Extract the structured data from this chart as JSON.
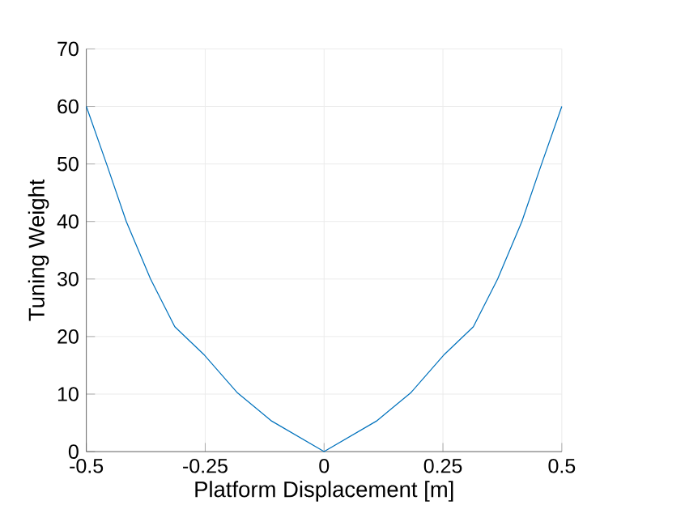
{
  "chart_data": {
    "type": "line",
    "xlabel": "Platform Displacement [m]",
    "ylabel": "Tuning Weight",
    "xlim": [
      -0.5,
      0.5
    ],
    "ylim": [
      0,
      70
    ],
    "xticks": [
      -0.5,
      -0.25,
      0,
      0.25,
      0.5
    ],
    "yticks": [
      0,
      10,
      20,
      30,
      40,
      50,
      60,
      70
    ],
    "grid": true,
    "series": [
      {
        "color": "#0072bd",
        "x": [
          -0.5,
          -0.457,
          -0.416,
          -0.365,
          -0.314,
          -0.253,
          -0.182,
          -0.11,
          0,
          0.11,
          0.182,
          0.253,
          0.314,
          0.365,
          0.416,
          0.457,
          0.5
        ],
        "values": [
          60,
          49.9,
          40,
          30,
          21.7,
          16.9,
          10.2,
          5.3,
          0,
          5.3,
          10.2,
          16.9,
          21.7,
          30,
          40,
          49.9,
          60
        ]
      }
    ]
  }
}
